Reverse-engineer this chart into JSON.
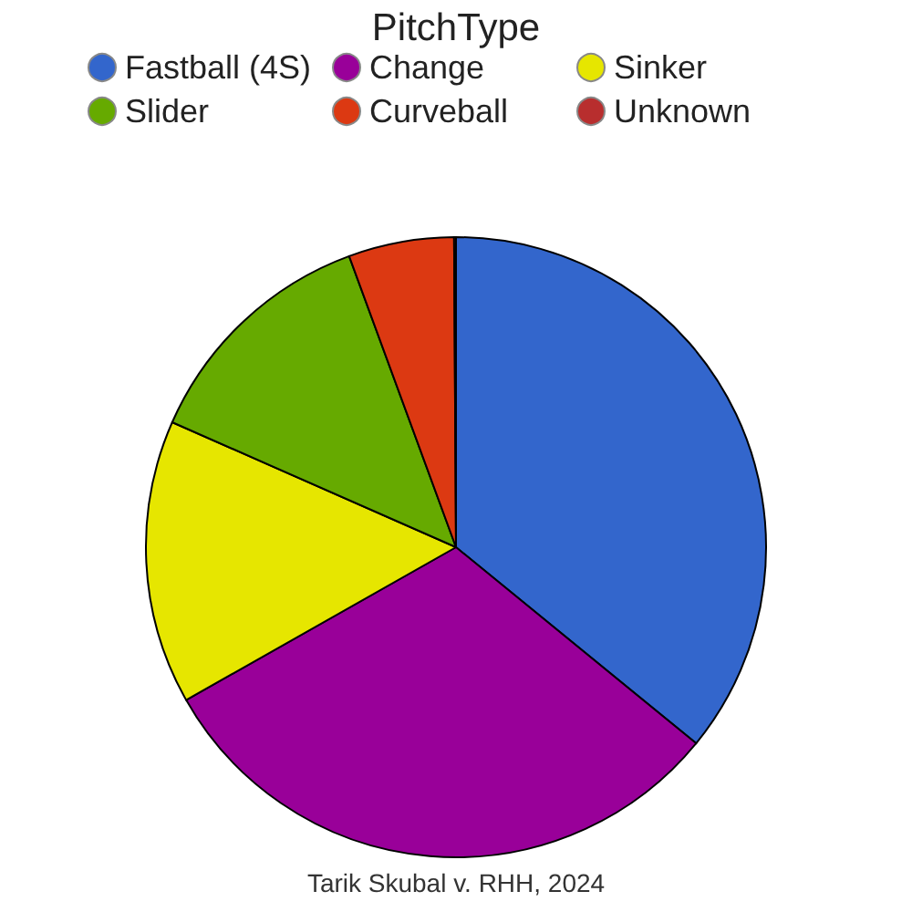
{
  "chart_data": {
    "type": "pie",
    "legend_title": "PitchType",
    "categories": [
      "Fastball (4S)",
      "Change",
      "Sinker",
      "Slider",
      "Curveball",
      "Unknown"
    ],
    "values": [
      35.9,
      30.9,
      14.8,
      12.8,
      5.5,
      0.1
    ],
    "colors": [
      "#3366cc",
      "#990099",
      "#e6e600",
      "#66aa00",
      "#dc3912",
      "#b82e2e"
    ],
    "legend": "top",
    "annotations": [
      "Tarik Skubal v. RHH, 2024"
    ]
  }
}
